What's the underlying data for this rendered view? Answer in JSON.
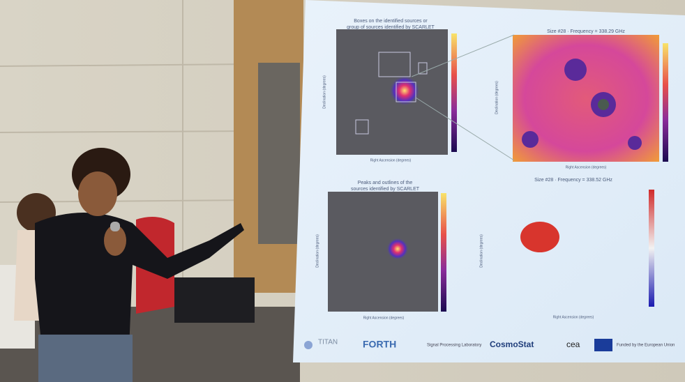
{
  "slide": {
    "panels": [
      {
        "title_lines": [
          "Boxes on the identified sources or",
          "group of sources identified by SCARLET"
        ],
        "x_label": "Right Ascension (degrees)",
        "y_label": "Declination (degrees)"
      },
      {
        "title_lines": [
          "Size #28 · Frequency = 338.29 GHz"
        ],
        "x_label": "Right Ascension (degrees)",
        "y_label": "Declination (degrees)"
      },
      {
        "title_lines": [
          "Peaks and outlines of the",
          "sources identified by SCARLET"
        ],
        "x_label": "Right Ascension (degrees)",
        "y_label": "Declination (degrees)"
      },
      {
        "title_lines": [
          "Size #28 · Frequency = 338.52 GHz"
        ],
        "x_label": "Right Ascension (degrees)",
        "y_label": "Declination (degrees)"
      }
    ],
    "logos": [
      "TITAN",
      "FORTH",
      "Signal Processing Laboratory",
      "CosmoStat",
      "cea",
      "Funded by the European Union"
    ]
  }
}
